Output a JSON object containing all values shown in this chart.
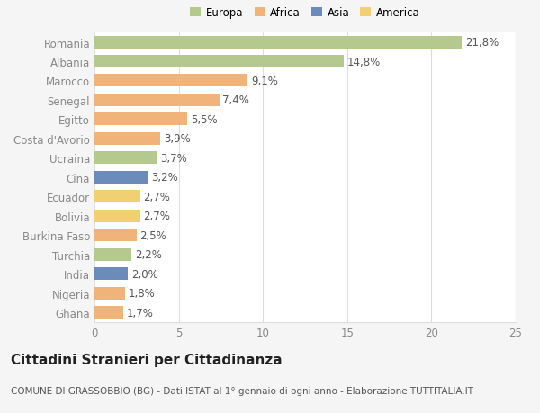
{
  "countries": [
    "Romania",
    "Albania",
    "Marocco",
    "Senegal",
    "Egitto",
    "Costa d'Avorio",
    "Ucraina",
    "Cina",
    "Ecuador",
    "Bolivia",
    "Burkina Faso",
    "Turchia",
    "India",
    "Nigeria",
    "Ghana"
  ],
  "values": [
    21.8,
    14.8,
    9.1,
    7.4,
    5.5,
    3.9,
    3.7,
    3.2,
    2.7,
    2.7,
    2.5,
    2.2,
    2.0,
    1.8,
    1.7
  ],
  "labels": [
    "21,8%",
    "14,8%",
    "9,1%",
    "7,4%",
    "5,5%",
    "3,9%",
    "3,7%",
    "3,2%",
    "2,7%",
    "2,7%",
    "2,5%",
    "2,2%",
    "2,0%",
    "1,8%",
    "1,7%"
  ],
  "colors": [
    "#b5c98e",
    "#b5c98e",
    "#f0b47a",
    "#f0b47a",
    "#f0b47a",
    "#f0b47a",
    "#b5c98e",
    "#6b8cba",
    "#f0d070",
    "#f0d070",
    "#f0b47a",
    "#b5c98e",
    "#6b8cba",
    "#f0b47a",
    "#f0b47a"
  ],
  "legend_labels": [
    "Europa",
    "Africa",
    "Asia",
    "America"
  ],
  "legend_colors": [
    "#b5c98e",
    "#f0b47a",
    "#6b8cba",
    "#f0d070"
  ],
  "xlim": [
    0,
    25
  ],
  "xticks": [
    0,
    5,
    10,
    15,
    20,
    25
  ],
  "title": "Cittadini Stranieri per Cittadinanza",
  "subtitle": "COMUNE DI GRASSOBBIO (BG) - Dati ISTAT al 1° gennaio di ogni anno - Elaborazione TUTTITALIA.IT",
  "bg_color": "#f5f5f5",
  "bar_bg_color": "#ffffff",
  "grid_color": "#dddddd",
  "bar_height": 0.65,
  "label_fontsize": 8.5,
  "title_fontsize": 11,
  "subtitle_fontsize": 7.5
}
